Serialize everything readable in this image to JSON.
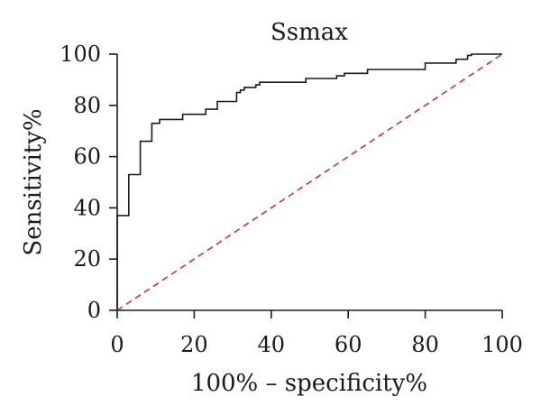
{
  "chart_data": {
    "type": "line",
    "title": "Ssmax",
    "xlabel": "100% – specificity%",
    "ylabel": "Sensitivity%",
    "xlim": [
      0,
      100
    ],
    "ylim": [
      0,
      100
    ],
    "x_ticks": [
      "0",
      "20",
      "40",
      "60",
      "80",
      "100"
    ],
    "y_ticks": [
      "0",
      "20",
      "40",
      "60",
      "80",
      "100"
    ],
    "grid": false,
    "legend": "none",
    "colors": {
      "roc": "#1a1a1a",
      "reference": "#c0392b"
    },
    "series": [
      {
        "values": [
          [
            0,
            0
          ],
          [
            0,
            37
          ],
          [
            3,
            37
          ],
          [
            3,
            53
          ],
          [
            6,
            53
          ],
          [
            6,
            66
          ],
          [
            9,
            66
          ],
          [
            9,
            73
          ],
          [
            11,
            73
          ],
          [
            11,
            74.5
          ],
          [
            17,
            74.5
          ],
          [
            17,
            76.5
          ],
          [
            23,
            76.5
          ],
          [
            23,
            78.5
          ],
          [
            26,
            78.5
          ],
          [
            26,
            81.5
          ],
          [
            31,
            81.5
          ],
          [
            31,
            85
          ],
          [
            32,
            85
          ],
          [
            32,
            86
          ],
          [
            33,
            86
          ],
          [
            33,
            87
          ],
          [
            36,
            87
          ],
          [
            36,
            88
          ],
          [
            37,
            88
          ],
          [
            37,
            89
          ],
          [
            49,
            89
          ],
          [
            49,
            90.5
          ],
          [
            57,
            90.5
          ],
          [
            57,
            91.5
          ],
          [
            59,
            91.5
          ],
          [
            59,
            92.5
          ],
          [
            65,
            92.5
          ],
          [
            65,
            94
          ],
          [
            80,
            94
          ],
          [
            80,
            96.5
          ],
          [
            88,
            96.5
          ],
          [
            88,
            98
          ],
          [
            91,
            98
          ],
          [
            91,
            99.5
          ],
          [
            92,
            99.5
          ],
          [
            92,
            100
          ],
          [
            100,
            100
          ]
        ]
      },
      {
        "values": [
          [
            0,
            0
          ],
          [
            100,
            100
          ]
        ]
      }
    ]
  }
}
